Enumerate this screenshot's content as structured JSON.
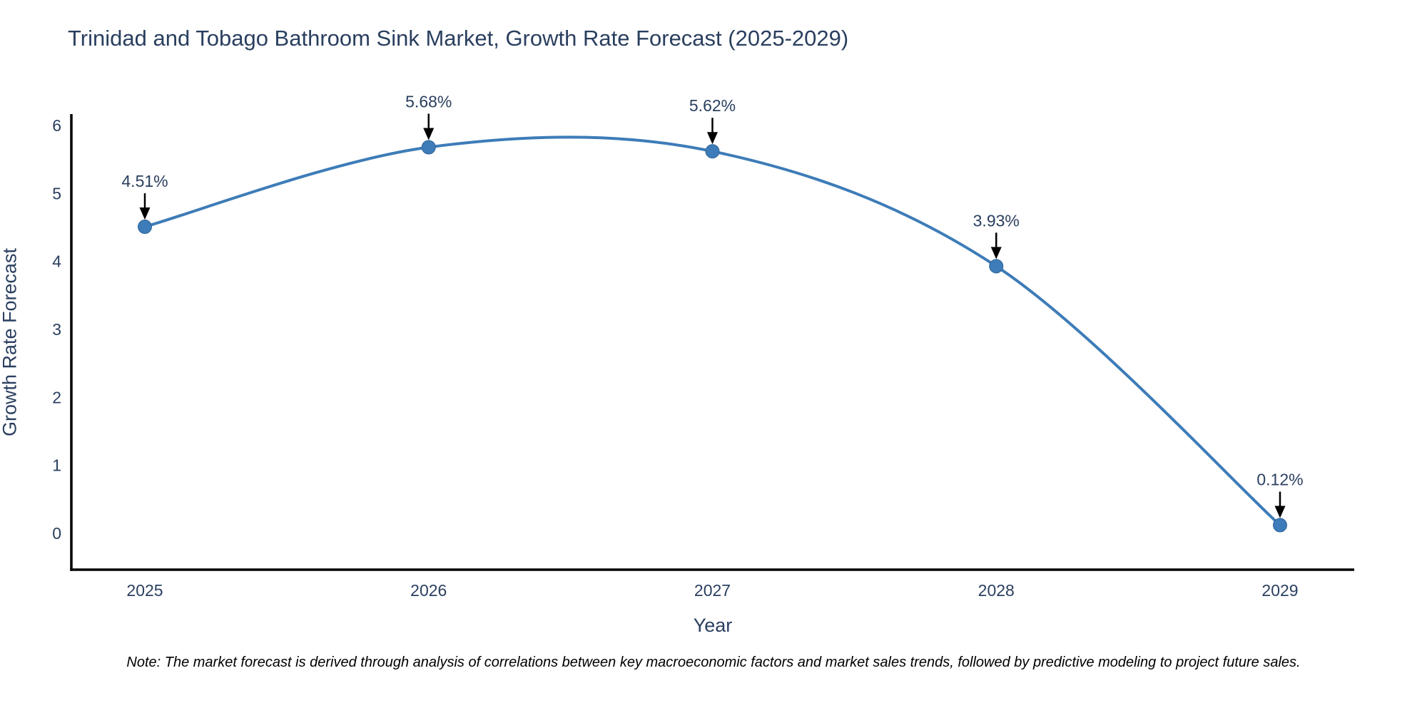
{
  "title": "Trinidad and Tobago Bathroom Sink Market, Growth Rate Forecast (2025-2029)",
  "note": "Note: The market forecast is derived through analysis of correlations between key macroeconomic factors and market sales trends, followed by predictive modeling to project future sales.",
  "chart_data": {
    "type": "line",
    "title": "Trinidad and Tobago Bathroom Sink Market, Growth Rate Forecast (2025-2029)",
    "xlabel": "Year",
    "ylabel": "Growth Rate Forecast",
    "x": [
      2025,
      2026,
      2027,
      2028,
      2029
    ],
    "values": [
      4.51,
      5.68,
      5.62,
      3.93,
      0.12
    ],
    "point_labels": [
      "4.51%",
      "5.68%",
      "5.62%",
      "3.93%",
      "0.12%"
    ],
    "xticks": [
      "2025",
      "2026",
      "2027",
      "2028",
      "2029"
    ],
    "yticks": [
      0,
      1,
      2,
      3,
      4,
      5,
      6
    ],
    "ylim": [
      -0.55,
      6.2
    ],
    "line_shape": "spline",
    "grid": false,
    "legend_position": "none",
    "colors": {
      "line": "#3d7cb8",
      "marker": "#3d7cb8",
      "marker_edge": "#2f6499",
      "axis": "#000000",
      "text": "#2a3f5f",
      "annotation_arrow": "#000000",
      "note_text": "#000000"
    }
  }
}
